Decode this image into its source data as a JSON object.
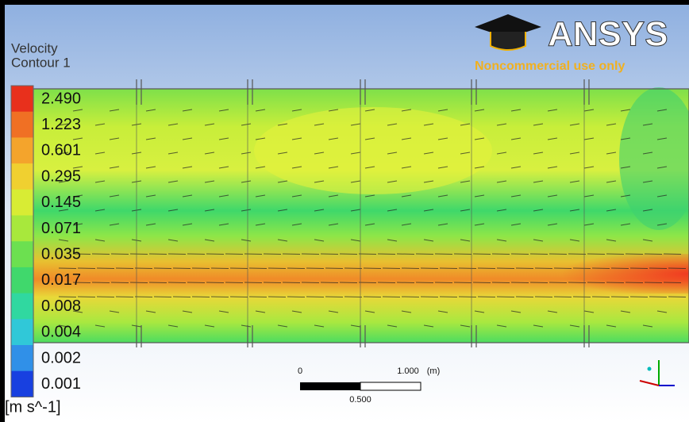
{
  "legend": {
    "title": [
      "Velocity",
      "Contour 1"
    ],
    "levels": [
      "2.490",
      "1.223",
      "0.601",
      "0.295",
      "0.145",
      "0.071",
      "0.035",
      "0.017",
      "0.008",
      "0.004",
      "0.002",
      "0.001"
    ],
    "units": "[m s^-1]"
  },
  "logo": {
    "brand": "ANSYS",
    "note": "Noncommercial use only"
  },
  "scale_bar": {
    "start": "0",
    "end": "1.000",
    "unit": "(m)",
    "mid": "0.500"
  }
}
